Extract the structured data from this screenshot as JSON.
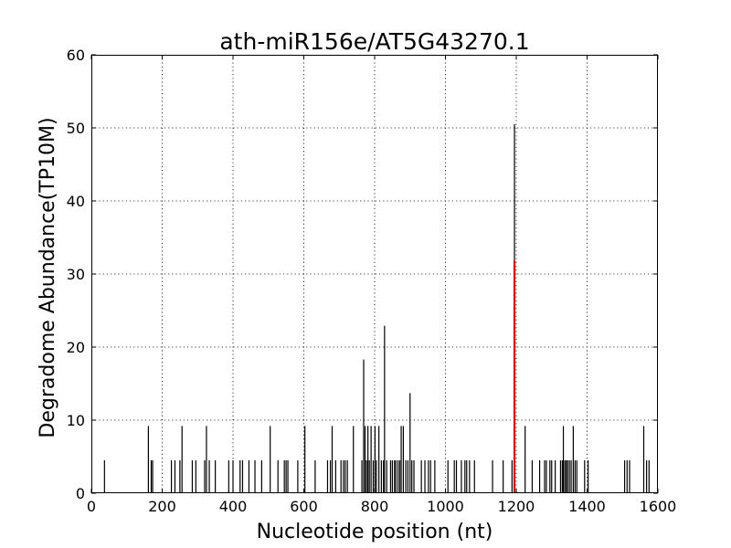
{
  "chart_data": {
    "type": "bar",
    "title": "ath-miR156e/AT5G43270.1",
    "xlabel": "Nucleotide position (nt)",
    "ylabel": "Degradome Abundance(TP10M)",
    "xlim": [
      0,
      1600
    ],
    "ylim": [
      0,
      60
    ],
    "xticks": [
      "0",
      "200",
      "400",
      "600",
      "800",
      "1000",
      "1200",
      "1400",
      "1600"
    ],
    "yticks": [
      "0",
      "10",
      "20",
      "30",
      "40",
      "50",
      "60"
    ],
    "grid": true,
    "colors": {
      "bars": "#000000",
      "highlight": "#ff0000"
    },
    "series": [
      {
        "values": [
          [
            37,
            4.5
          ],
          [
            161,
            9.2
          ],
          [
            169,
            4.5
          ],
          [
            173,
            4.5
          ],
          [
            226,
            4.5
          ],
          [
            236,
            4.5
          ],
          [
            250,
            4.5
          ],
          [
            256,
            9.2
          ],
          [
            285,
            4.5
          ],
          [
            295,
            4.5
          ],
          [
            320,
            4.5
          ],
          [
            325,
            9.2
          ],
          [
            333,
            4.5
          ],
          [
            350,
            4.5
          ],
          [
            388,
            4.5
          ],
          [
            400,
            4.5
          ],
          [
            420,
            4.5
          ],
          [
            427,
            4.5
          ],
          [
            445,
            4.5
          ],
          [
            462,
            4.5
          ],
          [
            481,
            4.5
          ],
          [
            505,
            9.2
          ],
          [
            527,
            4.5
          ],
          [
            545,
            4.5
          ],
          [
            550,
            4.5
          ],
          [
            555,
            4.5
          ],
          [
            583,
            4.5
          ],
          [
            603,
            9.2
          ],
          [
            632,
            4.5
          ],
          [
            667,
            4.5
          ],
          [
            675,
            4.5
          ],
          [
            680,
            9.2
          ],
          [
            690,
            4.5
          ],
          [
            705,
            4.5
          ],
          [
            712,
            4.5
          ],
          [
            717,
            4.5
          ],
          [
            723,
            4.5
          ],
          [
            740,
            9.2
          ],
          [
            764,
            4.5
          ],
          [
            769,
            18.3
          ],
          [
            773,
            9.2
          ],
          [
            777,
            4.5
          ],
          [
            781,
            9.2
          ],
          [
            785,
            4.5
          ],
          [
            790,
            9.2
          ],
          [
            796,
            4.5
          ],
          [
            801,
            9.2
          ],
          [
            805,
            4.5
          ],
          [
            812,
            9.2
          ],
          [
            819,
            4.5
          ],
          [
            825,
            4.5
          ],
          [
            828,
            22.9
          ],
          [
            834,
            4.5
          ],
          [
            845,
            4.5
          ],
          [
            850,
            4.5
          ],
          [
            856,
            4.5
          ],
          [
            860,
            4.5
          ],
          [
            866,
            4.5
          ],
          [
            871,
            4.5
          ],
          [
            875,
            9.2
          ],
          [
            881,
            9.2
          ],
          [
            888,
            4.5
          ],
          [
            894,
            4.5
          ],
          [
            900,
            13.7
          ],
          [
            905,
            4.5
          ],
          [
            911,
            4.5
          ],
          [
            932,
            4.5
          ],
          [
            942,
            4.5
          ],
          [
            952,
            4.5
          ],
          [
            958,
            4.5
          ],
          [
            970,
            4.5
          ],
          [
            1007,
            4.5
          ],
          [
            1025,
            4.5
          ],
          [
            1031,
            4.5
          ],
          [
            1045,
            4.5
          ],
          [
            1055,
            4.5
          ],
          [
            1060,
            4.5
          ],
          [
            1068,
            4.5
          ],
          [
            1082,
            4.5
          ],
          [
            1133,
            4.5
          ],
          [
            1163,
            4.5
          ],
          [
            1188,
            4.5
          ],
          [
            1195,
            50.5
          ],
          [
            1225,
            9.2
          ],
          [
            1245,
            4.5
          ],
          [
            1266,
            4.5
          ],
          [
            1280,
            4.5
          ],
          [
            1285,
            4.5
          ],
          [
            1295,
            4.5
          ],
          [
            1300,
            4.5
          ],
          [
            1310,
            4.5
          ],
          [
            1325,
            4.5
          ],
          [
            1330,
            4.5
          ],
          [
            1333,
            9.2
          ],
          [
            1337,
            4.5
          ],
          [
            1341,
            4.5
          ],
          [
            1345,
            4.5
          ],
          [
            1350,
            4.5
          ],
          [
            1355,
            4.5
          ],
          [
            1361,
            9.2
          ],
          [
            1366,
            4.5
          ],
          [
            1371,
            4.5
          ],
          [
            1393,
            4.5
          ],
          [
            1403,
            4.5
          ],
          [
            1506,
            4.5
          ],
          [
            1513,
            4.5
          ],
          [
            1520,
            4.5
          ],
          [
            1560,
            9.2
          ],
          [
            1568,
            4.5
          ],
          [
            1575,
            4.5
          ]
        ]
      },
      {
        "highlight": true,
        "values": [
          [
            1195,
            31.8
          ]
        ]
      }
    ]
  }
}
